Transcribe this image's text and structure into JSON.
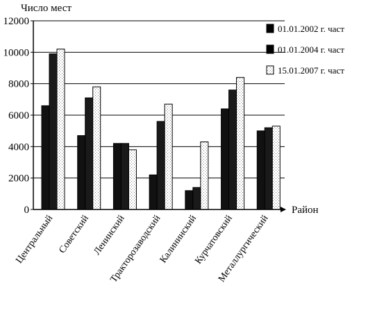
{
  "chart_data": {
    "type": "bar",
    "ylabel": "Число мест",
    "xlabel": "Район",
    "ylim": [
      0,
      12000
    ],
    "yticks": [
      0,
      2000,
      4000,
      6000,
      8000,
      10000,
      12000
    ],
    "grid": true,
    "legend_position": "right",
    "categories": [
      "Центральный",
      "Советский",
      "Ленинский",
      "Тракторозаводский",
      "Калининский",
      "Курчатовский",
      "Металлургический"
    ],
    "series": [
      {
        "name": "01.01.2002 г. част",
        "color": "#111111",
        "values": [
          6600,
          4700,
          4200,
          2200,
          1200,
          6400,
          5000
        ]
      },
      {
        "name": "01.01.2004 г. част",
        "color": "#1a1a1a",
        "values": [
          9900,
          7100,
          4200,
          5600,
          1400,
          7600,
          5200
        ]
      },
      {
        "name": "15.01.2007 г. част",
        "color": "#ffffff",
        "values": [
          10200,
          7800,
          3800,
          6700,
          4300,
          8400,
          5300
        ]
      }
    ]
  }
}
